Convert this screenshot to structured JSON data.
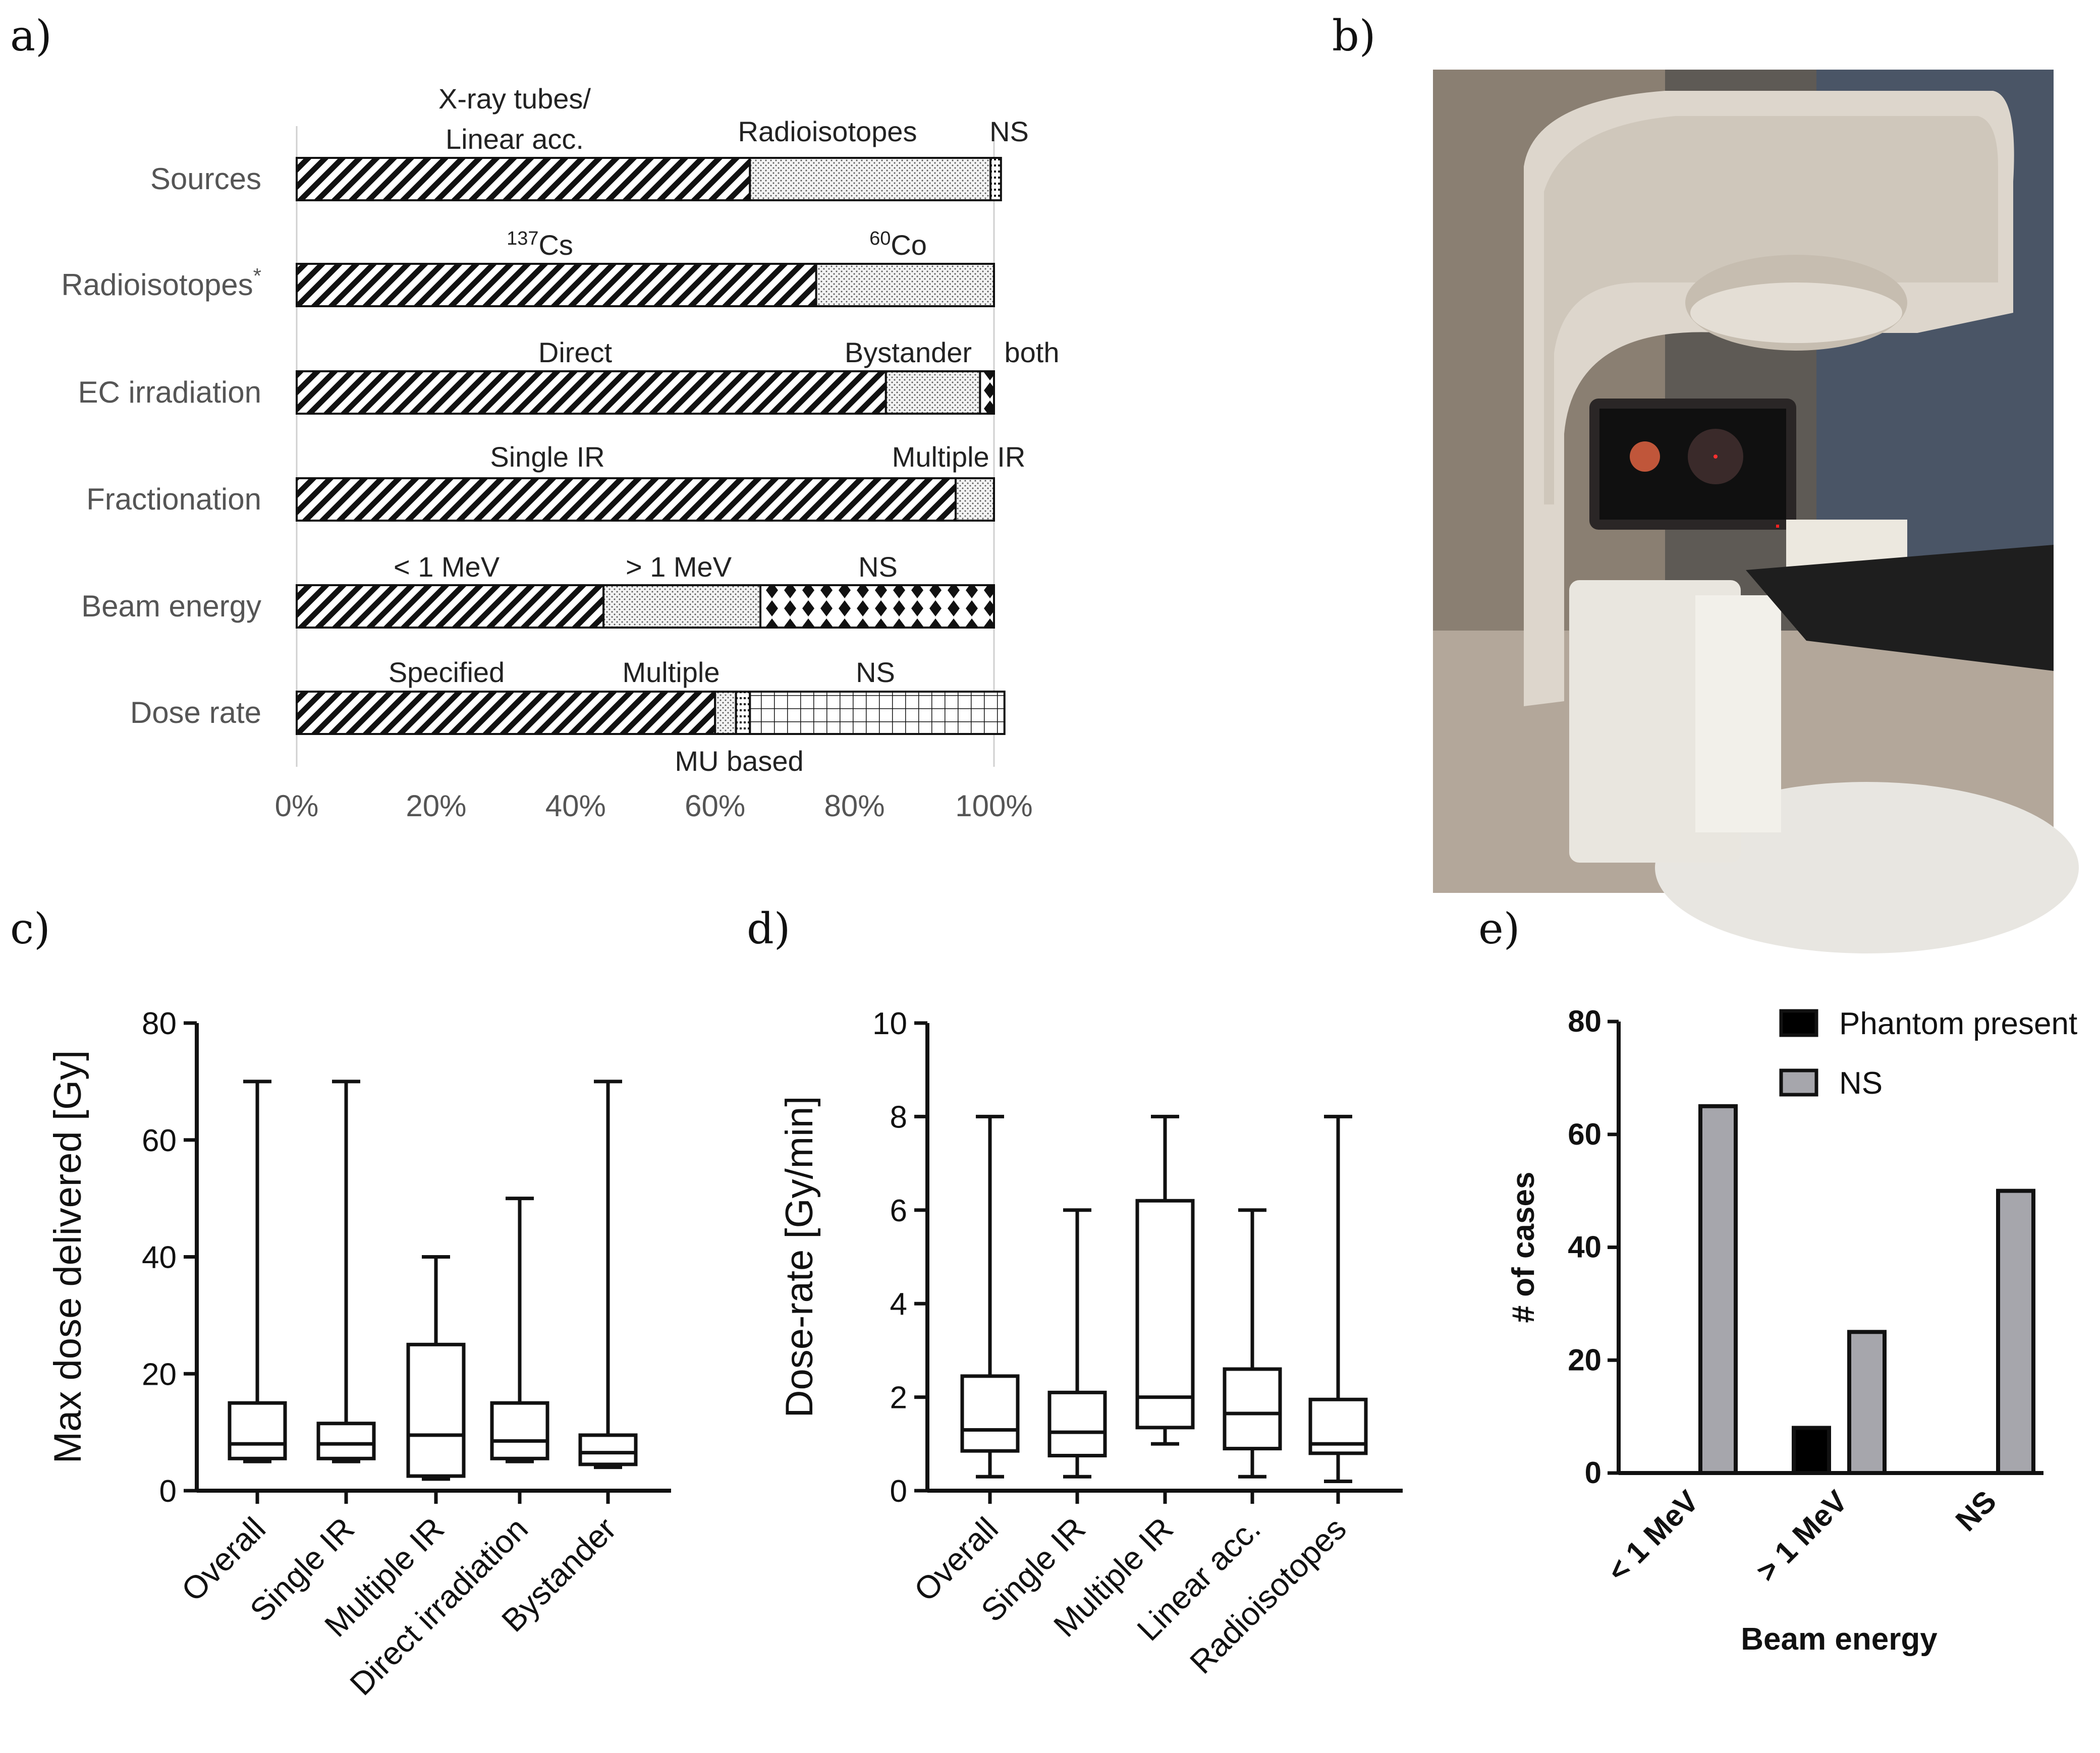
{
  "panel_labels": {
    "a": "a)",
    "b": "b)",
    "c": "c)",
    "d": "d)",
    "e": "e)"
  },
  "photo": {
    "icon": "linear-accelerator-photo"
  },
  "chart_data": [
    {
      "id": "a",
      "type": "stacked-bar-horizontal",
      "x_ticks": [
        "0%",
        "20%",
        "40%",
        "60%",
        "80%",
        "100%"
      ],
      "xlim": [
        0,
        100
      ],
      "rows": [
        {
          "label": "Sources",
          "segments": [
            {
              "name": "X-ray tubes/",
              "name2": "Linear acc.",
              "value": 65,
              "pattern": "hatch"
            },
            {
              "name": "Radioisotopes",
              "value": 34.5,
              "pattern": "dots"
            },
            {
              "name": "NS",
              "value": 1.5,
              "pattern": "dense"
            }
          ]
        },
        {
          "label": "Radioisotopes",
          "label_sup": "*",
          "segments": [
            {
              "name": "Cs",
              "sup": "137",
              "value": 74.5,
              "pattern": "hatch"
            },
            {
              "name": "Co",
              "sup": "60",
              "value": 25.5,
              "pattern": "dots"
            }
          ]
        },
        {
          "label": "EC irradiation",
          "segments": [
            {
              "name": "Direct",
              "value": 84.5,
              "pattern": "hatch"
            },
            {
              "name": "Bystander",
              "value": 13.5,
              "pattern": "dots"
            },
            {
              "name": "both",
              "value": 2,
              "pattern": "diamond"
            }
          ]
        },
        {
          "label": "Fractionation",
          "segments": [
            {
              "name": "Single IR",
              "value": 94.5,
              "pattern": "hatch"
            },
            {
              "name": "Multiple IR",
              "value": 5.5,
              "pattern": "dots"
            }
          ]
        },
        {
          "label": "Beam energy",
          "segments": [
            {
              "name": "< 1 MeV",
              "value": 44,
              "pattern": "hatch"
            },
            {
              "name": "> 1 MeV",
              "value": 22.5,
              "pattern": "dots"
            },
            {
              "name": "NS",
              "value": 33.5,
              "pattern": "diamond"
            }
          ]
        },
        {
          "label": "Dose rate",
          "segments": [
            {
              "name": "Specified",
              "value": 60,
              "pattern": "hatch"
            },
            {
              "name": "Multiple",
              "value": 3,
              "pattern": "dots"
            },
            {
              "name": "MU based",
              "value": 2,
              "pattern": "dense"
            },
            {
              "name": "NS",
              "value": 36.5,
              "pattern": "grid"
            }
          ]
        }
      ]
    },
    {
      "id": "c",
      "type": "boxplot",
      "ylabel": "Max dose delivered [Gy]",
      "ylim": [
        0,
        80
      ],
      "y_ticks": [
        0,
        20,
        40,
        60,
        80
      ],
      "categories": [
        "Overall",
        "Single IR",
        "Multiple IR",
        "Direct irradiation",
        "Bystander"
      ],
      "boxes": [
        {
          "min": 5,
          "q1": 5.5,
          "median": 8,
          "q3": 15,
          "max": 70
        },
        {
          "min": 5,
          "q1": 5.5,
          "median": 8,
          "q3": 11.5,
          "max": 70
        },
        {
          "min": 2,
          "q1": 2.5,
          "median": 9.5,
          "q3": 25,
          "max": 40
        },
        {
          "min": 5,
          "q1": 5.5,
          "median": 8.5,
          "q3": 15,
          "max": 50
        },
        {
          "min": 4,
          "q1": 4.5,
          "median": 6.5,
          "q3": 9.5,
          "max": 70
        }
      ]
    },
    {
      "id": "d",
      "type": "boxplot",
      "ylabel": "Dose-rate [Gy/min]",
      "ylim": [
        0,
        10
      ],
      "y_ticks": [
        0,
        2,
        4,
        6,
        8,
        10
      ],
      "categories": [
        "Overall",
        "Single IR",
        "Multiple IR",
        "Linear acc.",
        "Radioisotopes"
      ],
      "boxes": [
        {
          "min": 0.3,
          "q1": 0.85,
          "median": 1.3,
          "q3": 2.45,
          "max": 8
        },
        {
          "min": 0.3,
          "q1": 0.75,
          "median": 1.25,
          "q3": 2.1,
          "max": 6
        },
        {
          "min": 1.0,
          "q1": 1.35,
          "median": 2.0,
          "q3": 6.2,
          "max": 8
        },
        {
          "min": 0.3,
          "q1": 0.9,
          "median": 1.65,
          "q3": 2.6,
          "max": 6
        },
        {
          "min": 0.2,
          "q1": 0.8,
          "median": 1.0,
          "q3": 1.95,
          "max": 8
        }
      ]
    },
    {
      "id": "e",
      "type": "bar",
      "xlabel": "Beam energy",
      "ylabel": "# of cases",
      "ylim": [
        0,
        80
      ],
      "y_ticks": [
        0,
        20,
        40,
        60,
        80
      ],
      "categories": [
        "< 1 MeV",
        "> 1 MeV",
        "NS"
      ],
      "series": [
        {
          "name": "Phantom present",
          "color": "#000000",
          "values": [
            0,
            8,
            0
          ]
        },
        {
          "name": "NS",
          "color": "#a6a6ac",
          "values": [
            65,
            25,
            50
          ]
        }
      ]
    }
  ]
}
